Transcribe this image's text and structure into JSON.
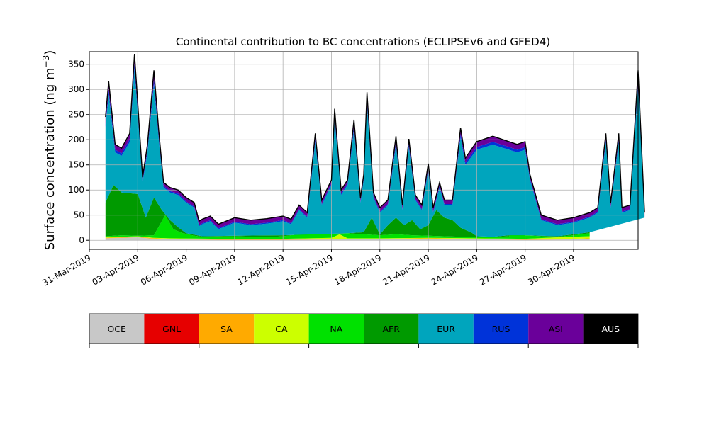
{
  "chart_data": {
    "type": "area",
    "stacked": true,
    "title": "Continental contribution to BC concentrations (ECLIPSEv6 and GFED4)",
    "ylabel_text": "Surface concentration (ng m",
    "ylabel_exp": "−3",
    "ylabel_close": ")",
    "xlabel": "",
    "x_start": "2019-03-31",
    "x_end": "2019-05-04",
    "data_start": "2019-04-01",
    "data_end": "2019-05-01",
    "ylim": [
      -18,
      375
    ],
    "yticks": [
      0,
      50,
      100,
      150,
      200,
      250,
      300,
      350
    ],
    "xtick_dates": [
      "2019-03-31",
      "2019-04-03",
      "2019-04-06",
      "2019-04-09",
      "2019-04-12",
      "2019-04-15",
      "2019-04-18",
      "2019-04-21",
      "2019-04-24",
      "2019-04-27",
      "2019-04-30"
    ],
    "xtick_labels": [
      "31-Mar-2019",
      "03-Apr-2019",
      "06-Apr-2019",
      "09-Apr-2019",
      "12-Apr-2019",
      "15-Apr-2019",
      "18-Apr-2019",
      "21-Apr-2019",
      "24-Apr-2019",
      "27-Apr-2019",
      "30-Apr-2019"
    ],
    "grid": true,
    "legend_position": "bottom colorbar",
    "series_order": [
      "OCE",
      "GNL",
      "SA",
      "CA",
      "NA",
      "AFR",
      "EUR",
      "RUS",
      "ASI",
      "AUS"
    ],
    "legend": [
      {
        "name": "OCE",
        "color": "#c8c8c8"
      },
      {
        "name": "GNL",
        "color": "#e60000"
      },
      {
        "name": "SA",
        "color": "#ffaa00"
      },
      {
        "name": "CA",
        "color": "#ccff00"
      },
      {
        "name": "NA",
        "color": "#00e100"
      },
      {
        "name": "AFR",
        "color": "#009a00"
      },
      {
        "name": "EUR",
        "color": "#00a5bd"
      },
      {
        "name": "RUS",
        "color": "#0033d9"
      },
      {
        "name": "ASI",
        "color": "#6a009a"
      },
      {
        "name": "AUS",
        "color": "#000000"
      }
    ],
    "cumulative_layers": [
      {
        "top_of": "OCE",
        "points": [
          [
            "2019-04-01",
            4
          ],
          [
            "2019-04-02",
            5
          ],
          [
            "2019-04-03",
            6
          ],
          [
            "2019-04-04",
            3
          ],
          [
            "2019-04-05",
            2
          ],
          [
            "2019-04-08",
            1
          ],
          [
            "2019-04-12",
            1
          ],
          [
            "2019-04-18",
            2
          ],
          [
            "2019-04-21",
            3
          ],
          [
            "2019-04-24",
            2
          ],
          [
            "2019-04-27",
            1
          ],
          [
            "2019-05-01",
            2
          ]
        ]
      },
      {
        "top_of": "SA",
        "points": [
          [
            "2019-04-01",
            5
          ],
          [
            "2019-04-02",
            6
          ],
          [
            "2019-04-03",
            7
          ],
          [
            "2019-04-04",
            4
          ],
          [
            "2019-04-05",
            3
          ],
          [
            "2019-04-08",
            2
          ],
          [
            "2019-04-12",
            2
          ],
          [
            "2019-04-16",
            3
          ],
          [
            "2019-04-18",
            3
          ],
          [
            "2019-04-21",
            4
          ],
          [
            "2019-04-24",
            3
          ],
          [
            "2019-04-27",
            2
          ],
          [
            "2019-04-30",
            3
          ],
          [
            "2019-05-01",
            4
          ]
        ]
      },
      {
        "top_of": "CA",
        "points": [
          [
            "2019-04-01",
            6
          ],
          [
            "2019-04-02",
            7
          ],
          [
            "2019-04-03",
            8
          ],
          [
            "2019-04-04",
            5
          ],
          [
            "2019-04-05",
            4
          ],
          [
            "2019-04-08",
            3
          ],
          [
            "2019-04-12",
            3
          ],
          [
            "2019-04-15",
            5
          ],
          [
            "2019-04-15.5",
            12
          ],
          [
            "2019-04-16",
            4
          ],
          [
            "2019-04-18",
            4
          ],
          [
            "2019-04-21",
            5
          ],
          [
            "2019-04-24",
            4
          ],
          [
            "2019-04-27",
            3
          ],
          [
            "2019-04-29",
            6
          ],
          [
            "2019-04-30",
            7
          ],
          [
            "2019-05-01",
            8
          ]
        ]
      },
      {
        "top_of": "NA",
        "points": [
          [
            "2019-04-01",
            8
          ],
          [
            "2019-04-02",
            10
          ],
          [
            "2019-04-03",
            9
          ],
          [
            "2019-04-04",
            10
          ],
          [
            "2019-04-04.7",
            50
          ],
          [
            "2019-04-05.2",
            22
          ],
          [
            "2019-04-05.8",
            14
          ],
          [
            "2019-04-06.5",
            9
          ],
          [
            "2019-04-07",
            7
          ],
          [
            "2019-04-09",
            8
          ],
          [
            "2019-04-11",
            6
          ],
          [
            "2019-04-12",
            8
          ],
          [
            "2019-04-13",
            12
          ],
          [
            "2019-04-14",
            13
          ],
          [
            "2019-04-15",
            12
          ],
          [
            "2019-04-16",
            14
          ],
          [
            "2019-04-17",
            12
          ],
          [
            "2019-04-18",
            10
          ],
          [
            "2019-04-19",
            12
          ],
          [
            "2019-04-20",
            10
          ],
          [
            "2019-04-21",
            9
          ],
          [
            "2019-04-22",
            8
          ],
          [
            "2019-04-23",
            7
          ],
          [
            "2019-04-24",
            6
          ],
          [
            "2019-04-25",
            6
          ],
          [
            "2019-04-26",
            8
          ],
          [
            "2019-04-26.6",
            24
          ],
          [
            "2019-04-27",
            10
          ],
          [
            "2019-04-28",
            8
          ],
          [
            "2019-04-29",
            7
          ],
          [
            "2019-04-30",
            10
          ],
          [
            "2019-05-01",
            14
          ]
        ]
      },
      {
        "top_of": "AFR",
        "points": [
          [
            "2019-04-01",
            75
          ],
          [
            "2019-04-01.5",
            110
          ],
          [
            "2019-04-02",
            95
          ],
          [
            "2019-04-03",
            92
          ],
          [
            "2019-04-03.5",
            45
          ],
          [
            "2019-04-04",
            85
          ],
          [
            "2019-04-04.5",
            60
          ],
          [
            "2019-04-05",
            40
          ],
          [
            "2019-04-05.5",
            26
          ],
          [
            "2019-04-06",
            14
          ],
          [
            "2019-04-07",
            8
          ],
          [
            "2019-04-09",
            9
          ],
          [
            "2019-04-12",
            10
          ],
          [
            "2019-04-14",
            12
          ],
          [
            "2019-04-15",
            13
          ],
          [
            "2019-04-16",
            14
          ],
          [
            "2019-04-17",
            16
          ],
          [
            "2019-04-17.5",
            45
          ],
          [
            "2019-04-18",
            12
          ],
          [
            "2019-04-18.5",
            30
          ],
          [
            "2019-04-19",
            45
          ],
          [
            "2019-04-19.5",
            30
          ],
          [
            "2019-04-20",
            40
          ],
          [
            "2019-04-20.5",
            22
          ],
          [
            "2019-04-21",
            30
          ],
          [
            "2019-04-21.5",
            60
          ],
          [
            "2019-04-22",
            45
          ],
          [
            "2019-04-22.5",
            40
          ],
          [
            "2019-04-23",
            25
          ],
          [
            "2019-04-23.7",
            15
          ],
          [
            "2019-04-24",
            8
          ],
          [
            "2019-04-25",
            7
          ],
          [
            "2019-04-26",
            10
          ],
          [
            "2019-04-27",
            10
          ],
          [
            "2019-04-28",
            9
          ],
          [
            "2019-04-29",
            8
          ],
          [
            "2019-04-30",
            12
          ],
          [
            "2019-05-01",
            16
          ]
        ]
      },
      {
        "top_of": "EUR",
        "points": [
          [
            "2019-04-01",
            225
          ],
          [
            "2019-04-01.2",
            290
          ],
          [
            "2019-04-01.6",
            175
          ],
          [
            "2019-04-02",
            168
          ],
          [
            "2019-04-02.5",
            195
          ],
          [
            "2019-04-02.8",
            340
          ],
          [
            "2019-04-03",
            250
          ],
          [
            "2019-04-03.3",
            115
          ],
          [
            "2019-04-03.6",
            175
          ],
          [
            "2019-04-04",
            310
          ],
          [
            "2019-04-04.3",
            200
          ],
          [
            "2019-04-04.6",
            105
          ],
          [
            "2019-04-05",
            95
          ],
          [
            "2019-04-05.5",
            90
          ],
          [
            "2019-04-06",
            75
          ],
          [
            "2019-04-06.5",
            65
          ],
          [
            "2019-04-06.8",
            28
          ],
          [
            "2019-04-07",
            32
          ],
          [
            "2019-04-07.5",
            38
          ],
          [
            "2019-04-08",
            22
          ],
          [
            "2019-04-09",
            35
          ],
          [
            "2019-04-10",
            30
          ],
          [
            "2019-04-11",
            33
          ],
          [
            "2019-04-12",
            38
          ],
          [
            "2019-04-12.5",
            32
          ],
          [
            "2019-04-13",
            60
          ],
          [
            "2019-04-13.5",
            45
          ],
          [
            "2019-04-14",
            195
          ],
          [
            "2019-04-14.4",
            70
          ],
          [
            "2019-04-15",
            110
          ],
          [
            "2019-04-15.2",
            240
          ],
          [
            "2019-04-15.6",
            90
          ],
          [
            "2019-04-16",
            110
          ],
          [
            "2019-04-16.4",
            220
          ],
          [
            "2019-04-16.8",
            75
          ],
          [
            "2019-04-17",
            120
          ],
          [
            "2019-04-17.2",
            270
          ],
          [
            "2019-04-17.6",
            85
          ],
          [
            "2019-04-18",
            55
          ],
          [
            "2019-04-18.5",
            70
          ],
          [
            "2019-04-19",
            190
          ],
          [
            "2019-04-19.4",
            60
          ],
          [
            "2019-04-19.8",
            185
          ],
          [
            "2019-04-20.2",
            80
          ],
          [
            "2019-04-20.6",
            60
          ],
          [
            "2019-04-21",
            140
          ],
          [
            "2019-04-21.3",
            55
          ],
          [
            "2019-04-21.7",
            105
          ],
          [
            "2019-04-22",
            70
          ],
          [
            "2019-04-22.5",
            70
          ],
          [
            "2019-04-23",
            205
          ],
          [
            "2019-04-23.3",
            150
          ],
          [
            "2019-04-24",
            180
          ],
          [
            "2019-04-25",
            190
          ],
          [
            "2019-04-26",
            180
          ],
          [
            "2019-04-26.5",
            175
          ],
          [
            "2019-04-27",
            180
          ],
          [
            "2019-04-27.3",
            120
          ],
          [
            "2019-04-28",
            40
          ],
          [
            "2019-04-29",
            30
          ],
          [
            "2019-04-30",
            35
          ],
          [
            "2019-04-30.5",
            40
          ],
          [
            "2019-05-01",
            45
          ],
          [
            "2019-05-01.5",
            55
          ],
          [
            "2019-05-02",
            195
          ],
          [
            "2019-05-02.3",
            65
          ],
          [
            "2019-05-02.8",
            195
          ],
          [
            "2019-05-03",
            55
          ],
          [
            "2019-05-03.5",
            60
          ],
          [
            "2019-05-04",
            310
          ],
          [
            "2019-05-04.4",
            45
          ]
        ]
      }
    ]
  }
}
